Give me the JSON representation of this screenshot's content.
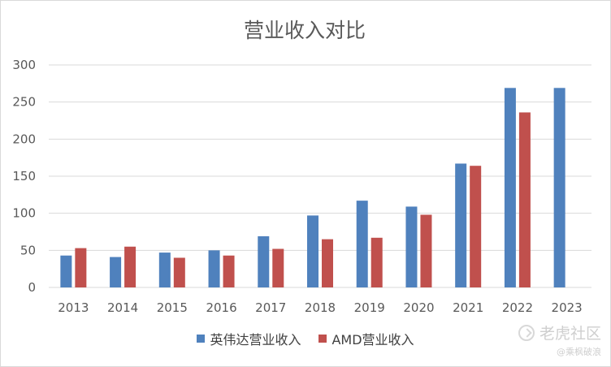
{
  "chart_data": {
    "type": "bar",
    "title": "营业收入对比",
    "categories": [
      "2013",
      "2014",
      "2015",
      "2016",
      "2017",
      "2018",
      "2019",
      "2020",
      "2021",
      "2022",
      "2023"
    ],
    "series": [
      {
        "name": "英伟达营业收入",
        "color": "#4f81bd",
        "values": [
          43,
          41,
          47,
          50,
          69,
          97,
          117,
          109,
          167,
          269,
          269
        ]
      },
      {
        "name": "AMD营业收入",
        "color": "#c0504d",
        "values": [
          53,
          55,
          40,
          43,
          52,
          65,
          67,
          98,
          164,
          236,
          null
        ]
      }
    ],
    "ylim": [
      0,
      300
    ],
    "yticks": [
      0,
      50,
      100,
      150,
      200,
      250,
      300
    ],
    "grid": true,
    "legend_position": "bottom"
  },
  "watermark": {
    "main": "老虎社区",
    "sub": "@乘枫破浪"
  }
}
